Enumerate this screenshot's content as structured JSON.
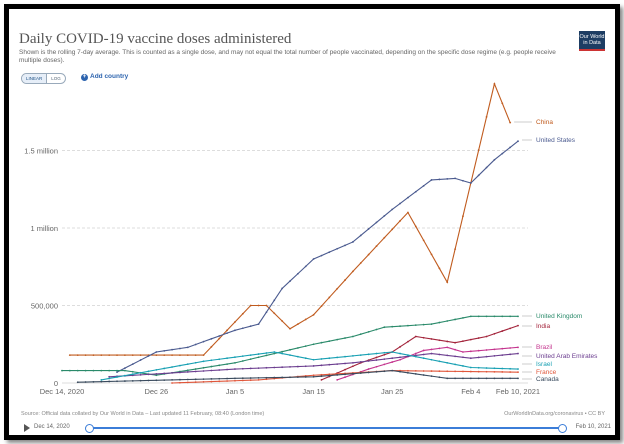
{
  "title": "Daily COVID-19 vaccine doses administered",
  "subtitle": "Shown is the rolling 7-day average. This is counted as a single dose, and may not equal the total number of people vaccinated, depending on the specific dose regime (e.g. people receive multiple doses).",
  "logo": "Our World in Data",
  "controls": {
    "linear": "LINEAR",
    "log": "LOG",
    "add_country": "Add country"
  },
  "footer": {
    "source": "Source: Official data collated by Our World in Data – Last updated 11 February, 08:40 (London time)",
    "license": "OurWorldInData.org/coronavirus • CC BY"
  },
  "timeline": {
    "start": "Dec 14, 2020",
    "end": "Feb 10, 2021"
  },
  "chart_data": {
    "type": "line",
    "title": "Daily COVID-19 vaccine doses administered",
    "ylim": [
      0,
      1950000
    ],
    "xlim": [
      "2020-12-14",
      "2021-02-10"
    ],
    "x_ticks": [
      "Dec 14, 2020",
      "Dec 26",
      "Jan 5",
      "Jan 15",
      "Jan 25",
      "Feb 4",
      "Feb 10, 2021"
    ],
    "x_tick_dates": [
      "2020-12-14",
      "2020-12-26",
      "2021-01-05",
      "2021-01-15",
      "2021-01-25",
      "2021-02-04",
      "2021-02-10"
    ],
    "y_ticks": [
      {
        "v": 0,
        "label": "0"
      },
      {
        "v": 500000,
        "label": "500,000"
      },
      {
        "v": 1000000,
        "label": "1 million"
      },
      {
        "v": 1500000,
        "label": "1.5 million"
      }
    ],
    "grid": "horizontal dashed",
    "legend": "right-end labels",
    "series": [
      {
        "name": "China",
        "color": "#c05b1e",
        "points": [
          [
            "2020-12-15",
            180000
          ],
          [
            "2021-01-01",
            180000
          ],
          [
            "2021-01-07",
            500000
          ],
          [
            "2021-01-09",
            500000
          ],
          [
            "2021-01-12",
            350000
          ],
          [
            "2021-01-15",
            440000
          ],
          [
            "2021-01-20",
            720000
          ],
          [
            "2021-01-27",
            1100000
          ],
          [
            "2021-02-01",
            650000
          ],
          [
            "2021-02-07",
            1930000
          ],
          [
            "2021-02-09",
            1680000
          ]
        ]
      },
      {
        "name": "United States",
        "color": "#4a5a8f",
        "points": [
          [
            "2020-12-21",
            70000
          ],
          [
            "2020-12-26",
            200000
          ],
          [
            "2020-12-30",
            230000
          ],
          [
            "2021-01-05",
            340000
          ],
          [
            "2021-01-08",
            380000
          ],
          [
            "2021-01-11",
            610000
          ],
          [
            "2021-01-15",
            800000
          ],
          [
            "2021-01-20",
            910000
          ],
          [
            "2021-01-25",
            1120000
          ],
          [
            "2021-01-30",
            1310000
          ],
          [
            "2021-02-02",
            1320000
          ],
          [
            "2021-02-04",
            1290000
          ],
          [
            "2021-02-07",
            1440000
          ],
          [
            "2021-02-10",
            1560000
          ]
        ]
      },
      {
        "name": "United Kingdom",
        "color": "#2a8a6a",
        "points": [
          [
            "2020-12-14",
            80000
          ],
          [
            "2020-12-22",
            80000
          ],
          [
            "2020-12-26",
            50000
          ],
          [
            "2021-01-05",
            130000
          ],
          [
            "2021-01-15",
            250000
          ],
          [
            "2021-01-20",
            300000
          ],
          [
            "2021-01-24",
            360000
          ],
          [
            "2021-01-30",
            380000
          ],
          [
            "2021-02-04",
            430000
          ],
          [
            "2021-02-10",
            430000
          ]
        ]
      },
      {
        "name": "India",
        "color": "#a3243b",
        "points": [
          [
            "2021-01-16",
            20000
          ],
          [
            "2021-01-21",
            130000
          ],
          [
            "2021-01-25",
            200000
          ],
          [
            "2021-01-28",
            300000
          ],
          [
            "2021-02-02",
            260000
          ],
          [
            "2021-02-06",
            300000
          ],
          [
            "2021-02-10",
            370000
          ]
        ]
      },
      {
        "name": "Brazil",
        "color": "#c4348e",
        "points": [
          [
            "2021-01-18",
            20000
          ],
          [
            "2021-01-22",
            90000
          ],
          [
            "2021-01-26",
            150000
          ],
          [
            "2021-01-29",
            210000
          ],
          [
            "2021-02-01",
            230000
          ],
          [
            "2021-02-03",
            200000
          ],
          [
            "2021-02-10",
            230000
          ]
        ]
      },
      {
        "name": "United Arab Emirates",
        "color": "#6b3d8f",
        "points": [
          [
            "2020-12-20",
            40000
          ],
          [
            "2021-01-05",
            90000
          ],
          [
            "2021-01-15",
            110000
          ],
          [
            "2021-01-20",
            130000
          ],
          [
            "2021-01-30",
            190000
          ],
          [
            "2021-02-04",
            160000
          ],
          [
            "2021-02-10",
            190000
          ]
        ]
      },
      {
        "name": "Israel",
        "color": "#18a0b3",
        "points": [
          [
            "2020-12-19",
            20000
          ],
          [
            "2021-01-01",
            140000
          ],
          [
            "2021-01-10",
            200000
          ],
          [
            "2021-01-15",
            150000
          ],
          [
            "2021-01-25",
            200000
          ],
          [
            "2021-02-04",
            100000
          ],
          [
            "2021-02-10",
            90000
          ]
        ]
      },
      {
        "name": "France",
        "color": "#e0563a",
        "points": [
          [
            "2020-12-28",
            0
          ],
          [
            "2021-01-08",
            20000
          ],
          [
            "2021-01-15",
            50000
          ],
          [
            "2021-01-25",
            80000
          ],
          [
            "2021-02-10",
            70000
          ]
        ]
      },
      {
        "name": "Canada",
        "color": "#3a4b5e",
        "points": [
          [
            "2020-12-16",
            5000
          ],
          [
            "2021-01-05",
            30000
          ],
          [
            "2021-01-15",
            40000
          ],
          [
            "2021-01-25",
            80000
          ],
          [
            "2021-02-01",
            30000
          ],
          [
            "2021-02-10",
            30000
          ]
        ]
      }
    ]
  }
}
